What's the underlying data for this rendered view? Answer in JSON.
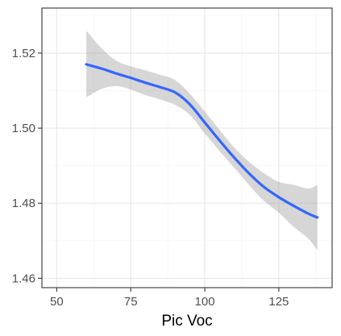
{
  "chart_data": {
    "type": "line",
    "title": "",
    "xlabel": "Pic Voc",
    "ylabel": "",
    "xlim": [
      45,
      143
    ],
    "ylim": [
      1.4575,
      1.532
    ],
    "x_ticks": [
      50,
      75,
      100,
      125
    ],
    "x_tick_labels": [
      "50",
      "75",
      "100",
      "125"
    ],
    "y_ticks": [
      1.46,
      1.48,
      1.5,
      1.52
    ],
    "y_tick_labels": [
      "1.46",
      "1.48",
      "1.50",
      "1.52"
    ],
    "grid": true,
    "colors": {
      "line": "#3366ff",
      "band": "#999999",
      "grid_major": "#ebebeb",
      "grid_minor": "#f5f5f5",
      "panel_border": "#333333"
    },
    "series": [
      {
        "x": [
          60,
          65,
          70,
          75,
          80,
          85,
          90,
          95,
          100,
          105,
          110,
          115,
          120,
          125,
          130,
          135,
          138
        ],
        "y": [
          1.517,
          1.5159,
          1.5146,
          1.5134,
          1.5121,
          1.5109,
          1.5095,
          1.5063,
          1.5015,
          1.4967,
          1.4921,
          1.4879,
          1.4843,
          1.4816,
          1.4793,
          1.4772,
          1.4762
        ],
        "lower": [
          1.5082,
          1.5104,
          1.5112,
          1.5103,
          1.5088,
          1.5076,
          1.5062,
          1.5035,
          1.4986,
          1.4939,
          1.4894,
          1.4848,
          1.4806,
          1.4775,
          1.4737,
          1.4705,
          1.4675
        ],
        "upper": [
          1.526,
          1.5214,
          1.518,
          1.5165,
          1.5154,
          1.5142,
          1.5128,
          1.5091,
          1.5044,
          1.4995,
          1.4948,
          1.491,
          1.488,
          1.4857,
          1.4849,
          1.4839,
          1.4849
        ]
      }
    ]
  }
}
